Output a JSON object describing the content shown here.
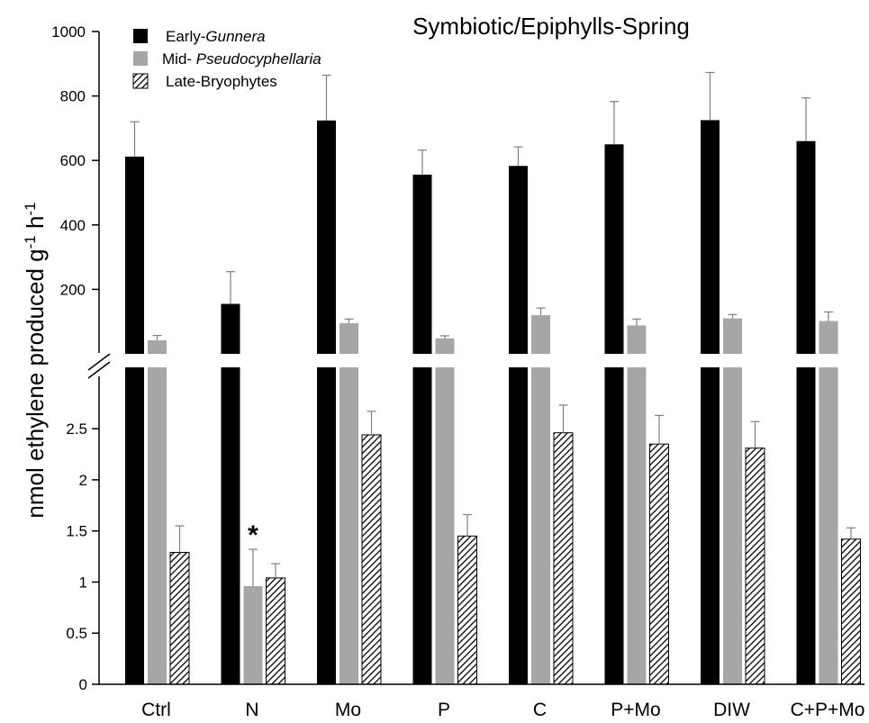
{
  "chart_data": {
    "type": "bar",
    "title": "Symbiotic/Epiphylls-Spring",
    "ylabel_main": "nmol ethylene produced g",
    "ylabel_sup1": "-1",
    "ylabel_mid": " h",
    "ylabel_sup2": "-1",
    "categories": [
      "Ctrl",
      "N",
      "Mo",
      "P",
      "C",
      "P+Mo",
      "DIW",
      "C+P+Mo"
    ],
    "axis_break": true,
    "upper_panel": {
      "ylim": [
        0,
        1000
      ],
      "ticks": [
        200,
        400,
        600,
        800,
        1000
      ],
      "series": [
        {
          "name_prefix": "Early-",
          "name_italic": "Gunnera",
          "style": "black",
          "values": [
            612,
            155,
            724,
            556,
            583,
            650,
            725,
            660
          ],
          "errors": [
            108,
            100,
            140,
            76,
            59,
            133,
            148,
            134
          ]
        },
        {
          "name_prefix": "Mid- ",
          "name_italic": "Pseudocyphellaria",
          "style": "gray",
          "values": [
            42,
            null,
            95,
            48,
            120,
            88,
            110,
            102
          ],
          "errors": [
            15,
            null,
            13,
            8,
            22,
            20,
            12,
            28
          ]
        }
      ]
    },
    "lower_panel": {
      "ylim": [
        0,
        3.1
      ],
      "ticks": [
        0,
        0.5,
        1,
        1.5,
        2,
        2.5
      ],
      "tick_labels": [
        "0",
        "0.5",
        "1",
        "1.5",
        "2",
        "2.5"
      ],
      "series": [
        {
          "style": "black",
          "values_exceed_panel": true
        },
        {
          "style": "gray",
          "values_exceed_panel": true,
          "N_value": 0.96,
          "N_error": 0.36
        },
        {
          "name_prefix": "Late-Bryophytes",
          "name_italic": "",
          "style": "hatched",
          "values": [
            1.29,
            1.04,
            2.44,
            1.45,
            2.46,
            2.35,
            2.31,
            1.42
          ],
          "errors": [
            0.26,
            0.14,
            0.23,
            0.21,
            0.27,
            0.28,
            0.26,
            0.11
          ]
        }
      ]
    },
    "annotations": [
      {
        "category": "N",
        "text": "*"
      }
    ],
    "legend_position": "top-left"
  }
}
